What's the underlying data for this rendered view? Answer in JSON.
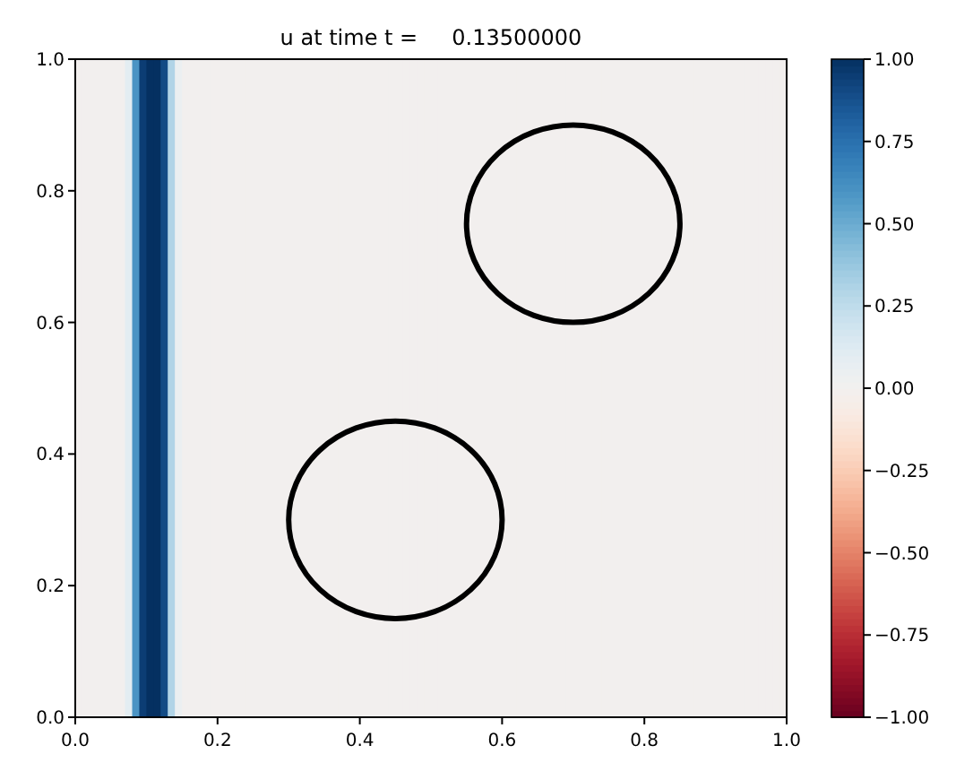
{
  "chart_data": {
    "type": "heatmap",
    "title": "u at time t =     0.13500000",
    "x": [
      0.005,
      0.015,
      0.025,
      0.035,
      0.045,
      0.055,
      0.065,
      0.075,
      0.085,
      0.095,
      0.105,
      0.115,
      0.125,
      0.135,
      0.145,
      0.155,
      0.165,
      0.175,
      0.185,
      0.195,
      0.205,
      0.215,
      0.225,
      0.235,
      0.245,
      0.255,
      0.265,
      0.275,
      0.285,
      0.295,
      0.305,
      0.315,
      0.325,
      0.335,
      0.345,
      0.355,
      0.365,
      0.375,
      0.385,
      0.395,
      0.405,
      0.415,
      0.425,
      0.435,
      0.445,
      0.455,
      0.465,
      0.475,
      0.485,
      0.495,
      0.505,
      0.515,
      0.525,
      0.535,
      0.545,
      0.555,
      0.565,
      0.575,
      0.585,
      0.595,
      0.605,
      0.615,
      0.625,
      0.635,
      0.645,
      0.655,
      0.665,
      0.675,
      0.685,
      0.695,
      0.705,
      0.715,
      0.725,
      0.735,
      0.745,
      0.755,
      0.765,
      0.775,
      0.785,
      0.795,
      0.805,
      0.815,
      0.825,
      0.835,
      0.845,
      0.855,
      0.865,
      0.875,
      0.885,
      0.895,
      0.905,
      0.915,
      0.925,
      0.935,
      0.945,
      0.955,
      0.965,
      0.975,
      0.985,
      0.995
    ],
    "cells": [
      [
        0,
        0,
        0,
        0,
        0,
        0,
        0,
        0.1,
        0.6,
        0.95,
        1,
        1,
        0.9,
        0.3,
        0.05,
        0,
        0,
        0,
        0,
        0,
        0,
        0,
        0,
        0,
        0,
        0,
        0,
        0,
        0,
        0,
        0,
        0,
        0,
        0,
        0,
        0,
        0,
        0,
        0,
        0,
        0,
        0,
        0,
        0,
        0,
        0,
        0,
        0,
        0,
        0,
        0,
        0,
        0,
        0,
        0,
        0,
        0,
        0,
        0,
        0,
        0,
        0,
        0,
        0,
        0,
        0,
        0,
        0,
        0,
        0,
        0,
        0,
        0,
        0,
        0,
        0,
        0,
        0,
        0,
        0,
        0,
        0,
        0,
        0,
        0,
        0,
        0,
        0,
        0,
        0,
        0,
        0,
        0,
        0,
        0,
        0,
        0,
        0,
        0,
        0
      ]
    ],
    "xlim": [
      0,
      1
    ],
    "ylim": [
      0,
      1
    ],
    "xticks": [
      {
        "value": 0,
        "label": "0.0"
      },
      {
        "value": 0.2,
        "label": "0.2"
      },
      {
        "value": 0.4,
        "label": "0.4"
      },
      {
        "value": 0.6,
        "label": "0.6"
      },
      {
        "value": 0.8,
        "label": "0.8"
      },
      {
        "value": 1,
        "label": "1.0"
      }
    ],
    "yticks": [
      {
        "value": 0,
        "label": "0.0"
      },
      {
        "value": 0.2,
        "label": "0.2"
      },
      {
        "value": 0.4,
        "label": "0.4"
      },
      {
        "value": 0.6,
        "label": "0.6"
      },
      {
        "value": 0.8,
        "label": "0.8"
      },
      {
        "value": 1,
        "label": "1.0"
      }
    ],
    "clim": [
      -1,
      1
    ],
    "cticks": [
      {
        "value": -1,
        "label": "−1.00"
      },
      {
        "value": -0.75,
        "label": "−0.75"
      },
      {
        "value": -0.5,
        "label": "−0.50"
      },
      {
        "value": -0.25,
        "label": "−0.25"
      },
      {
        "value": 0,
        "label": "0.00"
      },
      {
        "value": 0.25,
        "label": "0.25"
      },
      {
        "value": 0.5,
        "label": "0.50"
      },
      {
        "value": 0.75,
        "label": "0.75"
      },
      {
        "value": 1,
        "label": "1.00"
      }
    ]
  }
}
